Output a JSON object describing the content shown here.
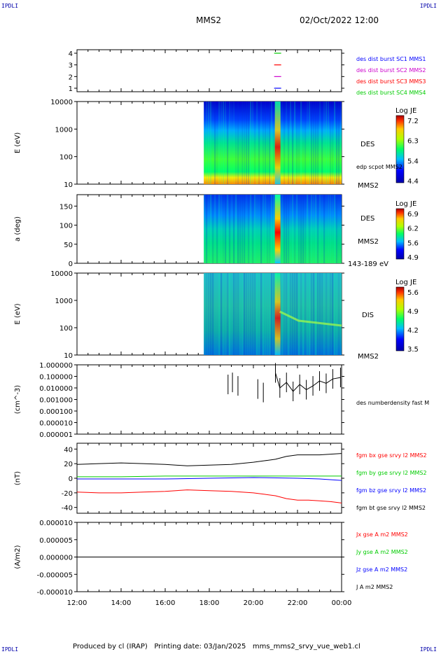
{
  "corner_label": "IPDLI",
  "header": {
    "mission": "MMS2",
    "datetime": "02/Oct/2022 12:00"
  },
  "footer": "Produced by cl (IRAP)   Printing date: 03/Jan/2025   mms_mms2_srvy_vue_web1.cl",
  "colors": {
    "s1": "#0000ff",
    "s2": "#cc00cc",
    "s3": "#ff0000",
    "s4": "#00cc00",
    "black": "#000000"
  },
  "chart_data": [
    {
      "id": "panel1",
      "type": "line",
      "yticks": [
        "1",
        "2",
        "3",
        "4"
      ],
      "legend": [
        {
          "label": "des dist burst SC1 MMS1",
          "color": "#0000ff",
          "y": 1
        },
        {
          "label": "des dist burst SC2 MMS2",
          "color": "#cc00cc",
          "y": 2
        },
        {
          "label": "des dist burst SC3 MMS3",
          "color": "#ff0000",
          "y": 3
        },
        {
          "label": "des dist burst SC4 MMS4",
          "color": "#00cc00",
          "y": 4
        }
      ],
      "burst_time_h": 21.1
    },
    {
      "id": "panel2",
      "type": "heatmap",
      "ylabel": "E (eV)",
      "yticks": [
        "10",
        "100",
        "1000",
        "10000"
      ],
      "labels": [
        "DES",
        "edp scpot MMS2",
        "MMS2"
      ],
      "colorbar": {
        "title": "Log JE",
        "ticks": [
          "7.2",
          "6.3",
          "5.4",
          "4.4"
        ]
      },
      "data_start_h": 17.75
    },
    {
      "id": "panel3",
      "type": "heatmap",
      "ylabel": "a (deg)",
      "yticks": [
        "0",
        "50",
        "100",
        "150"
      ],
      "labels": [
        "DES",
        "MMS2",
        "143-189 eV"
      ],
      "colorbar": {
        "title": "Log JE",
        "ticks": [
          "6.9",
          "6.2",
          "5.6",
          "4.9"
        ]
      },
      "data_start_h": 17.75
    },
    {
      "id": "panel4",
      "type": "heatmap",
      "ylabel": "E (eV)",
      "yticks": [
        "10",
        "100",
        "1000",
        "10000"
      ],
      "labels": [
        "DIS",
        "MMS2"
      ],
      "colorbar": {
        "title": "Log JE",
        "ticks": [
          "5.6",
          "4.9",
          "4.2",
          "3.5"
        ]
      },
      "data_start_h": 17.75
    },
    {
      "id": "panel5",
      "type": "scatter",
      "ylabel": "(cm^-3)",
      "yticks": [
        "0.000001",
        "0.000010",
        "0.000100",
        "0.001000",
        "0.010000",
        "0.100000",
        "1.000000"
      ],
      "label": "des numberdensity fast M",
      "segments": [
        [
          18.85,
          0.02
        ],
        [
          19.05,
          0.03
        ],
        [
          19.3,
          0.015
        ],
        [
          20.2,
          0.008
        ],
        [
          20.45,
          0.004
        ],
        [
          21.0,
          0.2
        ],
        [
          21.2,
          0.01
        ],
        [
          21.5,
          0.03
        ],
        [
          21.8,
          0.005
        ],
        [
          22.1,
          0.02
        ],
        [
          22.4,
          0.007
        ],
        [
          22.7,
          0.015
        ],
        [
          23.0,
          0.04
        ],
        [
          23.3,
          0.025
        ],
        [
          23.6,
          0.06
        ],
        [
          23.95,
          0.08
        ]
      ]
    },
    {
      "id": "panel6",
      "type": "line",
      "ylabel": "(nT)",
      "yticks": [
        "-40",
        "-20",
        "0",
        "20",
        "40"
      ],
      "ylim": [
        -48,
        48
      ],
      "legend": [
        {
          "label": "fgm bx gse srvy l2 MMS2",
          "color": "#ff0000"
        },
        {
          "label": "fgm by gse srvy l2 MMS2",
          "color": "#00cc00"
        },
        {
          "label": "fgm bz gse srvy l2 MMS2",
          "color": "#0000ff"
        },
        {
          "label": "fgm bt gse srvy l2 MMS2",
          "color": "#000000"
        }
      ],
      "series": [
        {
          "name": "fgm bt gse srvy l2 MMS2",
          "color": "#000000",
          "x": [
            12,
            13,
            14,
            15,
            16,
            17,
            18,
            19,
            20,
            20.5,
            21,
            21.5,
            22,
            22.5,
            23,
            23.5,
            24
          ],
          "values": [
            19,
            20,
            21,
            20,
            19,
            17,
            18,
            19,
            22,
            24,
            26,
            30,
            32,
            32,
            32,
            33,
            34
          ]
        },
        {
          "name": "fgm bx gse srvy l2 MMS2",
          "color": "#ff0000",
          "x": [
            12,
            13,
            14,
            15,
            16,
            17,
            18,
            19,
            20,
            20.5,
            21,
            21.5,
            22,
            22.5,
            23,
            23.5,
            24
          ],
          "values": [
            -19,
            -20,
            -20,
            -19,
            -18,
            -16,
            -17,
            -18,
            -20,
            -22,
            -24,
            -28,
            -30,
            -30,
            -31,
            -32,
            -34
          ]
        },
        {
          "name": "fgm by gse srvy l2 MMS2",
          "color": "#00cc00",
          "x": [
            12,
            14,
            16,
            18,
            20,
            22,
            24
          ],
          "values": [
            2,
            2,
            3,
            3,
            3,
            3,
            3
          ]
        },
        {
          "name": "fgm bz gse srvy l2 MMS2",
          "color": "#0000ff",
          "x": [
            12,
            14,
            16,
            18,
            20,
            22,
            23,
            24
          ],
          "values": [
            -1,
            -1,
            -1,
            0,
            1,
            0,
            -1,
            -3
          ]
        }
      ]
    },
    {
      "id": "panel7",
      "type": "line",
      "ylabel": "(A/m2)",
      "yticks": [
        "-0.000010",
        "-0.000005",
        "0.000000",
        "0.000005",
        "0.000010"
      ],
      "ylim": [
        -1e-05,
        1e-05
      ],
      "legend": [
        {
          "label": "Jx gse A m2 MMS2",
          "color": "#ff0000"
        },
        {
          "label": "Jy gse A m2 MMS2",
          "color": "#00cc00"
        },
        {
          "label": "Jz gse A m2 MMS2",
          "color": "#0000ff"
        },
        {
          "label": "J A m2 MMS2",
          "color": "#000000"
        }
      ],
      "series": [
        {
          "name": "J A m2 MMS2",
          "color": "#000000",
          "x": [
            12,
            24
          ],
          "values": [
            0,
            0
          ]
        }
      ]
    }
  ],
  "xaxis": {
    "ticks": [
      "12:00",
      "14:00",
      "16:00",
      "18:00",
      "20:00",
      "22:00",
      "00:00"
    ],
    "range_h": [
      12,
      24
    ]
  }
}
